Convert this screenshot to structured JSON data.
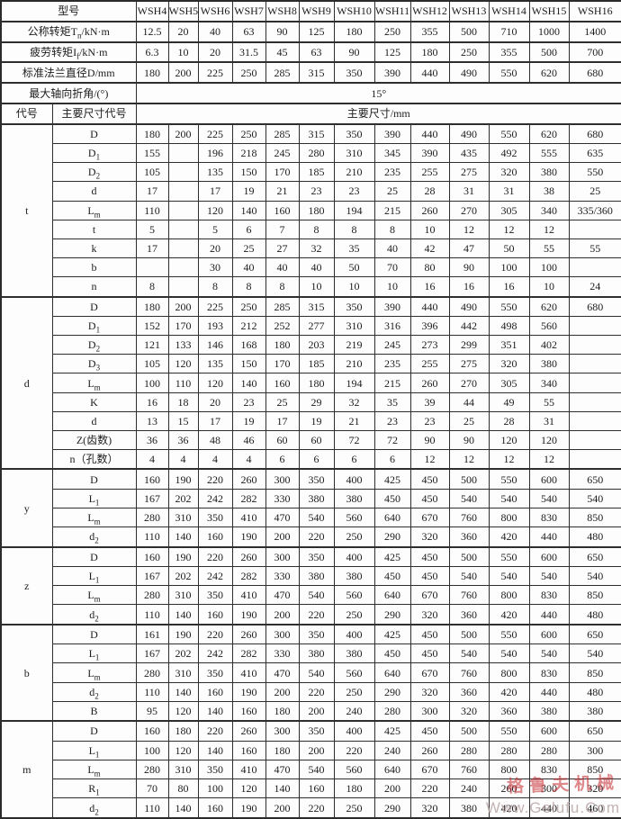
{
  "table": {
    "header": {
      "label": "型号",
      "models": [
        "WSH4",
        "WSH5",
        "WSH6",
        "WSH7",
        "WSH8",
        "WSH9",
        "WSH10",
        "WSH11",
        "WSH12",
        "WSH13",
        "WSH14",
        "WSH15",
        "WSH16"
      ]
    },
    "spec_rows": [
      {
        "label": {
          "pre": "公称转矩T",
          "sub": "n",
          "post": "/kN·m"
        },
        "values": [
          "12.5",
          "20",
          "40",
          "63",
          "90",
          "125",
          "180",
          "250",
          "355",
          "500",
          "710",
          "1000",
          "1400"
        ]
      },
      {
        "label": {
          "pre": "疲劳转矩I",
          "sub": "f",
          "post": "/kN·m"
        },
        "values": [
          "6.3",
          "10",
          "20",
          "31.5",
          "45",
          "63",
          "90",
          "125",
          "180",
          "250",
          "355",
          "500",
          "700"
        ]
      },
      {
        "label": "标准法兰直径D/mm",
        "values": [
          "180",
          "200",
          "225",
          "250",
          "285",
          "315",
          "350",
          "390",
          "440",
          "490",
          "550",
          "620",
          "680"
        ]
      }
    ],
    "angle_row": {
      "label": "最大轴向折角/(°)",
      "value": "15°"
    },
    "code_row": {
      "code_label": "代号",
      "dim_code_label": "主要尺寸代号",
      "dim_label": "主要尺寸/mm"
    },
    "sections": [
      {
        "code": "t",
        "rows": [
          {
            "label": "D",
            "values": [
              "180",
              "200",
              "225",
              "250",
              "285",
              "315",
              "350",
              "390",
              "440",
              "490",
              "550",
              "620",
              "680"
            ]
          },
          {
            "label": {
              "pre": "D",
              "sub": "1",
              "post": ""
            },
            "values": [
              "155",
              "",
              "196",
              "218",
              "245",
              "280",
              "310",
              "345",
              "390",
              "435",
              "492",
              "555",
              "635"
            ]
          },
          {
            "label": {
              "pre": "D",
              "sub": "2",
              "post": ""
            },
            "values": [
              "105",
              "",
              "135",
              "150",
              "170",
              "185",
              "210",
              "235",
              "255",
              "275",
              "320",
              "380",
              "550"
            ]
          },
          {
            "label": "d",
            "values": [
              "17",
              "",
              "17",
              "19",
              "21",
              "23",
              "23",
              "25",
              "28",
              "31",
              "31",
              "38",
              "25"
            ]
          },
          {
            "label": {
              "pre": "L",
              "sub": "m",
              "post": ""
            },
            "values": [
              "110",
              "",
              "120",
              "140",
              "160",
              "180",
              "194",
              "215",
              "260",
              "270",
              "305",
              "340",
              "335/360"
            ]
          },
          {
            "label": "t",
            "values": [
              "5",
              "",
              "5",
              "6",
              "7",
              "8",
              "8",
              "8",
              "10",
              "12",
              "12",
              "12",
              ""
            ]
          },
          {
            "label": "k",
            "values": [
              "17",
              "",
              "20",
              "25",
              "27",
              "32",
              "35",
              "40",
              "42",
              "47",
              "50",
              "55",
              "55"
            ]
          },
          {
            "label": "b",
            "values": [
              "",
              "",
              "30",
              "40",
              "40",
              "40",
              "50",
              "70",
              "80",
              "90",
              "100",
              "100",
              ""
            ]
          },
          {
            "label": "n",
            "values": [
              "8",
              "",
              "8",
              "8",
              "8",
              "10",
              "10",
              "10",
              "16",
              "16",
              "16",
              "10",
              "24"
            ]
          }
        ]
      },
      {
        "code": "d",
        "rows": [
          {
            "label": "D",
            "values": [
              "180",
              "200",
              "225",
              "250",
              "285",
              "315",
              "350",
              "390",
              "440",
              "490",
              "550",
              "620",
              "680"
            ]
          },
          {
            "label": {
              "pre": "D",
              "sub": "1",
              "post": ""
            },
            "values": [
              "152",
              "170",
              "193",
              "212",
              "252",
              "277",
              "310",
              "316",
              "396",
              "442",
              "498",
              "560",
              ""
            ]
          },
          {
            "label": {
              "pre": "D",
              "sub": "2",
              "post": ""
            },
            "values": [
              "121",
              "133",
              "146",
              "168",
              "180",
              "203",
              "219",
              "245",
              "273",
              "299",
              "351",
              "402",
              ""
            ]
          },
          {
            "label": {
              "pre": "D",
              "sub": "3",
              "post": ""
            },
            "values": [
              "105",
              "120",
              "135",
              "150",
              "170",
              "185",
              "210",
              "235",
              "255",
              "275",
              "320",
              "380",
              ""
            ]
          },
          {
            "label": {
              "pre": "L",
              "sub": "m",
              "post": ""
            },
            "values": [
              "100",
              "110",
              "120",
              "140",
              "160",
              "180",
              "194",
              "215",
              "260",
              "270",
              "305",
              "340",
              ""
            ]
          },
          {
            "label": "K",
            "values": [
              "16",
              "18",
              "20",
              "23",
              "25",
              "29",
              "32",
              "35",
              "39",
              "44",
              "49",
              "55",
              ""
            ]
          },
          {
            "label": "d",
            "values": [
              "13",
              "15",
              "17",
              "19",
              "17",
              "19",
              "21",
              "23",
              "23",
              "25",
              "28",
              "31",
              ""
            ]
          },
          {
            "label": "Z(齿数)",
            "values": [
              "36",
              "36",
              "48",
              "46",
              "60",
              "60",
              "72",
              "72",
              "90",
              "90",
              "120",
              "120",
              ""
            ]
          },
          {
            "label": "n（孔数）",
            "values": [
              "4",
              "4",
              "4",
              "4",
              "6",
              "6",
              "6",
              "6",
              "12",
              "12",
              "12",
              "12",
              ""
            ]
          }
        ]
      },
      {
        "code": "y",
        "rows": [
          {
            "label": "D",
            "values": [
              "160",
              "190",
              "220",
              "260",
              "300",
              "350",
              "400",
              "425",
              "450",
              "500",
              "550",
              "600",
              "650"
            ]
          },
          {
            "label": {
              "pre": "L",
              "sub": "1",
              "post": ""
            },
            "values": [
              "167",
              "202",
              "242",
              "282",
              "330",
              "380",
              "380",
              "450",
              "450",
              "540",
              "540",
              "540",
              "540"
            ]
          },
          {
            "label": {
              "pre": "L",
              "sub": "m",
              "post": ""
            },
            "values": [
              "280",
              "310",
              "350",
              "410",
              "470",
              "540",
              "560",
              "640",
              "670",
              "760",
              "800",
              "830",
              "850"
            ]
          },
          {
            "label": {
              "pre": "d",
              "sub": "2",
              "post": ""
            },
            "values": [
              "110",
              "140",
              "160",
              "190",
              "200",
              "220",
              "250",
              "290",
              "320",
              "360",
              "420",
              "440",
              "480"
            ]
          }
        ]
      },
      {
        "code": "z",
        "rows": [
          {
            "label": "D",
            "values": [
              "160",
              "190",
              "220",
              "260",
              "300",
              "350",
              "400",
              "425",
              "450",
              "500",
              "550",
              "600",
              "650"
            ]
          },
          {
            "label": {
              "pre": "L",
              "sub": "1",
              "post": ""
            },
            "values": [
              "167",
              "202",
              "242",
              "282",
              "330",
              "380",
              "380",
              "450",
              "450",
              "540",
              "540",
              "540",
              "540"
            ]
          },
          {
            "label": {
              "pre": "L",
              "sub": "m",
              "post": ""
            },
            "values": [
              "280",
              "310",
              "350",
              "410",
              "470",
              "540",
              "560",
              "640",
              "670",
              "760",
              "800",
              "830",
              "850"
            ]
          },
          {
            "label": {
              "pre": "d",
              "sub": "2",
              "post": ""
            },
            "values": [
              "110",
              "140",
              "160",
              "190",
              "200",
              "220",
              "250",
              "290",
              "320",
              "360",
              "420",
              "440",
              "480"
            ]
          }
        ]
      },
      {
        "code": "b",
        "rows": [
          {
            "label": "D",
            "values": [
              "161",
              "190",
              "220",
              "260",
              "300",
              "350",
              "400",
              "425",
              "450",
              "500",
              "550",
              "600",
              "650"
            ]
          },
          {
            "label": {
              "pre": "L",
              "sub": "1",
              "post": ""
            },
            "values": [
              "167",
              "202",
              "242",
              "282",
              "330",
              "380",
              "380",
              "450",
              "450",
              "540",
              "540",
              "540",
              "540"
            ]
          },
          {
            "label": {
              "pre": "L",
              "sub": "m",
              "post": ""
            },
            "values": [
              "280",
              "310",
              "350",
              "410",
              "470",
              "540",
              "560",
              "640",
              "670",
              "760",
              "800",
              "830",
              "850"
            ]
          },
          {
            "label": {
              "pre": "d",
              "sub": "2",
              "post": ""
            },
            "values": [
              "110",
              "140",
              "160",
              "190",
              "200",
              "220",
              "250",
              "290",
              "320",
              "360",
              "420",
              "440",
              "480"
            ]
          },
          {
            "label": "B",
            "values": [
              "95",
              "120",
              "140",
              "160",
              "180",
              "200",
              "240",
              "280",
              "300",
              "320",
              "360",
              "380",
              "380"
            ]
          }
        ]
      },
      {
        "code": "m",
        "rows": [
          {
            "label": "D",
            "values": [
              "160",
              "180",
              "220",
              "260",
              "300",
              "350",
              "400",
              "425",
              "450",
              "500",
              "550",
              "600",
              "650"
            ]
          },
          {
            "label": {
              "pre": "L",
              "sub": "1",
              "post": ""
            },
            "values": [
              "100",
              "120",
              "140",
              "160",
              "180",
              "200",
              "220",
              "240",
              "260",
              "280",
              "280",
              "280",
              "300"
            ]
          },
          {
            "label": {
              "pre": "L",
              "sub": "m",
              "post": ""
            },
            "values": [
              "280",
              "310",
              "350",
              "410",
              "470",
              "540",
              "560",
              "640",
              "670",
              "760",
              "800",
              "830",
              "850"
            ]
          },
          {
            "label": {
              "pre": "R",
              "sub": "1",
              "post": ""
            },
            "values": [
              "70",
              "80",
              "100",
              "120",
              "140",
              "160",
              "180",
              "200",
              "220",
              "240",
              "260",
              "300",
              "320"
            ]
          },
          {
            "label": {
              "pre": "d",
              "sub": "2",
              "post": ""
            },
            "values": [
              "110",
              "140",
              "160",
              "190",
              "200",
              "220",
              "250",
              "290",
              "320",
              "380",
              "420",
              "440",
              "460"
            ]
          }
        ]
      }
    ]
  },
  "watermark": {
    "cn": "格鲁夫机械",
    "url": "Www.Gelufu.Com"
  },
  "colors": {
    "border": "#2e2e2e",
    "text": "#1c1c1c",
    "watermark_red": "#c4282e",
    "background": "#fdfdfd"
  }
}
